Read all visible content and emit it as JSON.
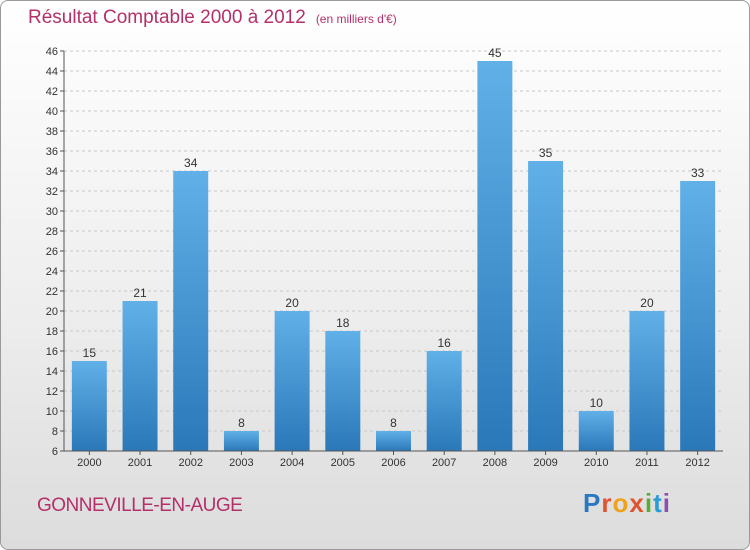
{
  "chart_data": {
    "type": "bar",
    "title": "Résultat Comptable 2000 à 2012",
    "subtitle": "(en milliers d'€)",
    "categories": [
      "2000",
      "2001",
      "2002",
      "2003",
      "2004",
      "2005",
      "2006",
      "2007",
      "2008",
      "2009",
      "2010",
      "2011",
      "2012"
    ],
    "values": [
      15,
      21,
      34,
      8,
      20,
      18,
      8,
      16,
      45,
      35,
      10,
      20,
      33
    ],
    "ylim": [
      6,
      46
    ],
    "ytick_step": 2,
    "grid": "horizontal-dashed",
    "xlabel": "",
    "ylabel": ""
  },
  "footer": {
    "location": "GONNEVILLE-EN-AUGE",
    "brand": "Proxiti"
  },
  "colors": {
    "bar_light": "#62b0e8",
    "bar_dark": "#2a78b8",
    "title": "#b5306a"
  }
}
